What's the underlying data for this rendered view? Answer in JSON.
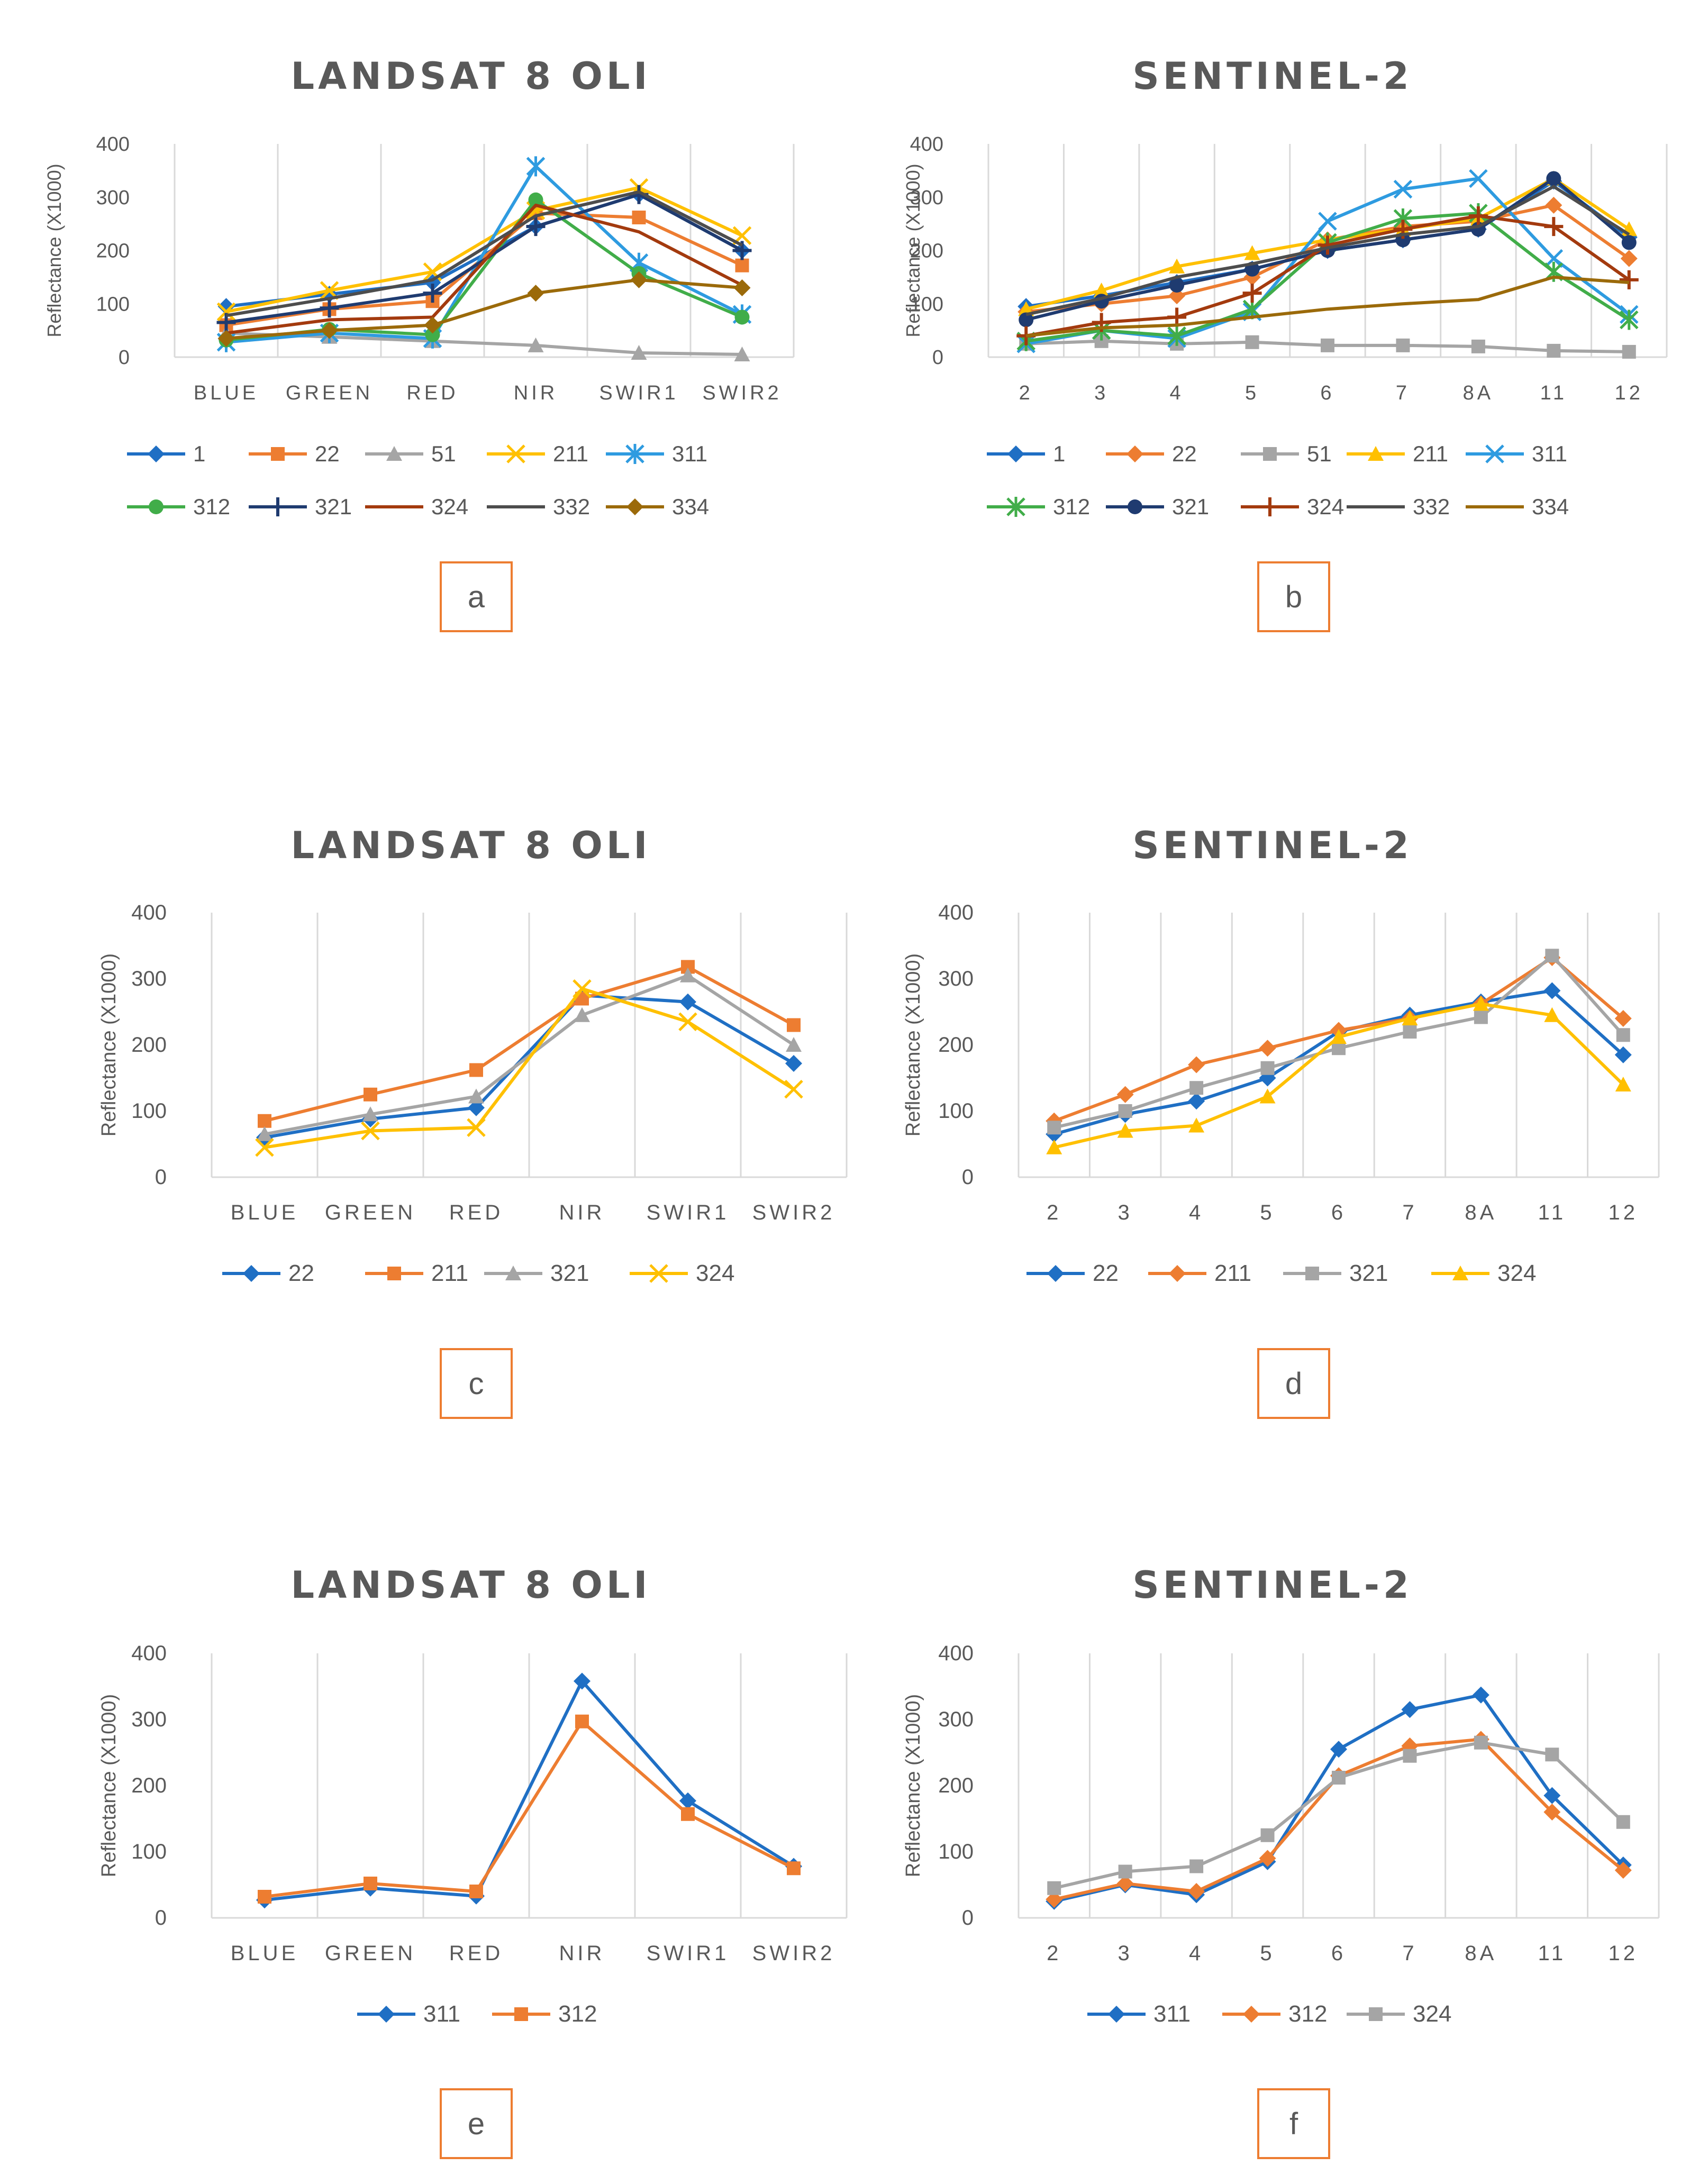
{
  "colors": {
    "1": "#1f6fc4",
    "22": "#ed7d31",
    "51": "#a5a5a5",
    "211": "#ffc000",
    "311": "#2e9be0",
    "312": "#41ad49",
    "321": "#1f3b70",
    "324": "#a33a0e",
    "332": "#4d4d4d",
    "334": "#9b6a0a",
    "grid": "#d9d9d9",
    "text": "#595959",
    "box": "#ed7d31",
    "c_22": "#1f6fc4",
    "c_211": "#ed7d31",
    "c_321": "#a5a5a5",
    "c_324": "#ffc000",
    "e_311": "#1f6fc4",
    "e_312": "#ed7d31",
    "f_324": "#a5a5a5"
  },
  "chart_data": [
    {
      "id": "a",
      "type": "line",
      "title": "LANDSAT 8 OLI",
      "panel_label": "a",
      "ylabel": "Reflectance (X1000)",
      "ylim": [
        0,
        400
      ],
      "yticks": [
        0,
        100,
        200,
        300,
        400
      ],
      "categories": [
        "BLUE",
        "GREEN",
        "RED",
        "NIR",
        "SWIR1",
        "SWIR2"
      ],
      "legend_rows": [
        [
          "1",
          "22",
          "51",
          "211",
          "311"
        ],
        [
          "312",
          "321",
          "324",
          "332",
          "334"
        ]
      ],
      "series": [
        {
          "name": "1",
          "marker": "diamond",
          "color": "#1f6fc4",
          "values": [
            95,
            118,
            140,
            245,
            305,
            200
          ]
        },
        {
          "name": "22",
          "marker": "square",
          "color": "#ed7d31",
          "values": [
            60,
            90,
            105,
            270,
            262,
            172
          ]
        },
        {
          "name": "51",
          "marker": "triangle",
          "color": "#a5a5a5",
          "values": [
            45,
            38,
            30,
            22,
            8,
            5
          ]
        },
        {
          "name": "211",
          "marker": "x",
          "color": "#ffc000",
          "values": [
            85,
            125,
            160,
            275,
            318,
            228
          ]
        },
        {
          "name": "311",
          "marker": "star",
          "color": "#2e9be0",
          "values": [
            28,
            45,
            35,
            358,
            177,
            80
          ]
        },
        {
          "name": "312",
          "marker": "circle",
          "color": "#41ad49",
          "values": [
            32,
            52,
            42,
            295,
            157,
            75
          ]
        },
        {
          "name": "321",
          "marker": "plus",
          "color": "#1f3b70",
          "values": [
            65,
            92,
            120,
            245,
            305,
            200
          ]
        },
        {
          "name": "324",
          "marker": "none",
          "color": "#a33a0e",
          "values": [
            45,
            70,
            75,
            285,
            235,
            135
          ]
        },
        {
          "name": "332",
          "marker": "none",
          "color": "#4d4d4d",
          "values": [
            78,
            110,
            145,
            265,
            310,
            210
          ]
        },
        {
          "name": "334",
          "marker": "diamond",
          "color": "#9b6a0a",
          "values": [
            35,
            50,
            60,
            120,
            145,
            130
          ]
        }
      ]
    },
    {
      "id": "b",
      "type": "line",
      "title": "SENTINEL-2",
      "panel_label": "b",
      "ylabel": "Reflectance (X1000)",
      "ylim": [
        0,
        400
      ],
      "yticks": [
        0,
        100,
        200,
        300,
        400
      ],
      "categories": [
        "2",
        "3",
        "4",
        "5",
        "6",
        "7",
        "8A",
        "11",
        "12"
      ],
      "legend_rows": [
        [
          "1",
          "22",
          "51",
          "211",
          "311"
        ],
        [
          "312",
          "321",
          "324",
          "332",
          "334"
        ]
      ],
      "series": [
        {
          "name": "1",
          "marker": "diamond",
          "color": "#1f6fc4",
          "values": [
            95,
            115,
            140,
            165,
            200,
            220,
            240,
            330,
            225
          ]
        },
        {
          "name": "22",
          "marker": "diamond",
          "color": "#ed7d31",
          "values": [
            85,
            100,
            115,
            150,
            220,
            245,
            255,
            285,
            185
          ]
        },
        {
          "name": "51",
          "marker": "square",
          "color": "#a5a5a5",
          "values": [
            25,
            30,
            25,
            28,
            22,
            22,
            20,
            12,
            10
          ]
        },
        {
          "name": "211",
          "marker": "triangle",
          "color": "#ffc000",
          "values": [
            90,
            125,
            170,
            195,
            220,
            240,
            260,
            335,
            240
          ]
        },
        {
          "name": "311",
          "marker": "x",
          "color": "#2e9be0",
          "values": [
            25,
            50,
            35,
            85,
            255,
            315,
            335,
            185,
            80
          ]
        },
        {
          "name": "312",
          "marker": "star",
          "color": "#41ad49",
          "values": [
            30,
            50,
            40,
            90,
            215,
            260,
            270,
            160,
            70
          ]
        },
        {
          "name": "321",
          "marker": "circle",
          "color": "#1f3b70",
          "values": [
            70,
            105,
            135,
            165,
            200,
            220,
            240,
            335,
            215
          ]
        },
        {
          "name": "324",
          "marker": "plus",
          "color": "#a33a0e",
          "values": [
            40,
            65,
            75,
            120,
            210,
            240,
            265,
            245,
            145
          ]
        },
        {
          "name": "332",
          "marker": "none",
          "color": "#4d4d4d",
          "values": [
            80,
            110,
            150,
            175,
            205,
            230,
            245,
            320,
            230
          ]
        },
        {
          "name": "334",
          "marker": "none",
          "color": "#9b6a0a",
          "values": [
            40,
            55,
            60,
            75,
            90,
            100,
            108,
            150,
            140
          ]
        }
      ]
    },
    {
      "id": "c",
      "type": "line",
      "title": "LANDSAT 8 OLI",
      "panel_label": "c",
      "ylabel": "Reflectance (X1000)",
      "ylim": [
        0,
        400
      ],
      "yticks": [
        0,
        100,
        200,
        300,
        400
      ],
      "categories": [
        "BLUE",
        "GREEN",
        "RED",
        "NIR",
        "SWIR1",
        "SWIR2"
      ],
      "legend_rows": [
        [
          "22",
          "211",
          "321",
          "324"
        ]
      ],
      "series": [
        {
          "name": "22",
          "marker": "diamond",
          "color": "#1f6fc4",
          "values": [
            60,
            88,
            105,
            275,
            265,
            172
          ]
        },
        {
          "name": "211",
          "marker": "square",
          "color": "#ed7d31",
          "values": [
            85,
            125,
            162,
            270,
            318,
            230
          ]
        },
        {
          "name": "321",
          "marker": "triangle",
          "color": "#a5a5a5",
          "values": [
            65,
            95,
            122,
            245,
            305,
            200
          ]
        },
        {
          "name": "324",
          "marker": "x",
          "color": "#ffc000",
          "values": [
            45,
            70,
            75,
            285,
            235,
            133
          ]
        }
      ]
    },
    {
      "id": "d",
      "type": "line",
      "title": "SENTINEL-2",
      "panel_label": "d",
      "ylabel": "Reflectance (X1000)",
      "ylim": [
        0,
        400
      ],
      "yticks": [
        0,
        100,
        200,
        300,
        400
      ],
      "categories": [
        "2",
        "3",
        "4",
        "5",
        "6",
        "7",
        "8A",
        "11",
        "12"
      ],
      "legend_rows": [
        [
          "22",
          "211",
          "321",
          "324"
        ]
      ],
      "series": [
        {
          "name": "22",
          "marker": "diamond",
          "color": "#1f6fc4",
          "values": [
            65,
            95,
            115,
            150,
            220,
            245,
            265,
            282,
            185
          ]
        },
        {
          "name": "211",
          "marker": "diamond",
          "color": "#ed7d31",
          "values": [
            85,
            125,
            170,
            195,
            222,
            240,
            262,
            332,
            240
          ]
        },
        {
          "name": "321",
          "marker": "square",
          "color": "#a5a5a5",
          "values": [
            75,
            100,
            135,
            165,
            195,
            220,
            242,
            335,
            215
          ]
        },
        {
          "name": "324",
          "marker": "triangle",
          "color": "#ffc000",
          "values": [
            45,
            70,
            78,
            122,
            212,
            240,
            262,
            245,
            140
          ]
        }
      ]
    },
    {
      "id": "e",
      "type": "line",
      "title": "LANDSAT 8 OLI",
      "panel_label": "e",
      "ylabel": "Reflectance (X1000)",
      "ylim": [
        0,
        400
      ],
      "yticks": [
        0,
        100,
        200,
        300,
        400
      ],
      "categories": [
        "BLUE",
        "GREEN",
        "RED",
        "NIR",
        "SWIR1",
        "SWIR2"
      ],
      "legend_rows": [
        [
          "311",
          "312"
        ]
      ],
      "series": [
        {
          "name": "311",
          "marker": "diamond",
          "color": "#1f6fc4",
          "values": [
            27,
            45,
            33,
            358,
            177,
            78
          ]
        },
        {
          "name": "312",
          "marker": "square",
          "color": "#ed7d31",
          "values": [
            32,
            52,
            40,
            297,
            157,
            75
          ]
        }
      ]
    },
    {
      "id": "f",
      "type": "line",
      "title": "SENTINEL-2",
      "panel_label": "f",
      "ylabel": "Reflectance (X1000)",
      "ylim": [
        0,
        400
      ],
      "yticks": [
        0,
        100,
        200,
        300,
        400
      ],
      "categories": [
        "2",
        "3",
        "4",
        "5",
        "6",
        "7",
        "8A",
        "11",
        "12"
      ],
      "legend_rows": [
        [
          "311",
          "312",
          "324"
        ]
      ],
      "series": [
        {
          "name": "311",
          "marker": "diamond",
          "color": "#1f6fc4",
          "values": [
            25,
            50,
            35,
            85,
            255,
            315,
            337,
            185,
            80
          ]
        },
        {
          "name": "312",
          "marker": "diamond",
          "color": "#ed7d31",
          "values": [
            28,
            52,
            40,
            90,
            215,
            260,
            270,
            160,
            72
          ]
        },
        {
          "name": "324",
          "marker": "square",
          "color": "#a5a5a5",
          "values": [
            45,
            70,
            78,
            125,
            212,
            245,
            265,
            247,
            145
          ]
        }
      ]
    }
  ]
}
